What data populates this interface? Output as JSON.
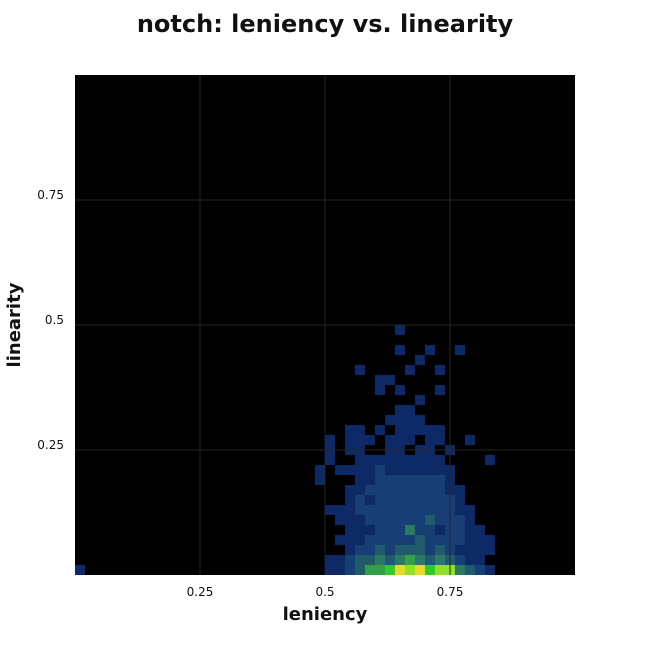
{
  "chart_data": {
    "type": "heatmap",
    "title": "notch: leniency vs. linearity",
    "xlabel": "leniency",
    "ylabel": "linearity",
    "xlim": [
      0,
      1
    ],
    "ylim": [
      0,
      1
    ],
    "bin_size": 0.02,
    "x_ticks": [
      {
        "value": 0.25,
        "label": "0.25"
      },
      {
        "value": 0.5,
        "label": "0.5"
      },
      {
        "value": 0.75,
        "label": "0.75"
      }
    ],
    "y_ticks": [
      {
        "value": 0.25,
        "label": "0.25"
      },
      {
        "value": 0.5,
        "label": "0.5"
      },
      {
        "value": 0.75,
        "label": "0.75"
      }
    ],
    "grid": true,
    "background": "#000000",
    "grid_color": "#262626",
    "colormap": [
      "#0e2a66",
      "#173f75",
      "#215a6a",
      "#2a7a5f",
      "#33a048",
      "#2ecc2e",
      "#8fe02c",
      "#e8d82a",
      "#e02222"
    ],
    "cells": [
      [
        0,
        0,
        1
      ],
      [
        25,
        0,
        1
      ],
      [
        26,
        0,
        1
      ],
      [
        27,
        0,
        2
      ],
      [
        28,
        0,
        3
      ],
      [
        29,
        0,
        5
      ],
      [
        30,
        0,
        5
      ],
      [
        31,
        0,
        6
      ],
      [
        32,
        0,
        8
      ],
      [
        33,
        0,
        7
      ],
      [
        34,
        0,
        8
      ],
      [
        35,
        0,
        6
      ],
      [
        36,
        0,
        7
      ],
      [
        37,
        0,
        7
      ],
      [
        38,
        0,
        4
      ],
      [
        39,
        0,
        3
      ],
      [
        40,
        0,
        2
      ],
      [
        41,
        0,
        1
      ],
      [
        25,
        1,
        1
      ],
      [
        26,
        1,
        1
      ],
      [
        27,
        1,
        2
      ],
      [
        28,
        1,
        3
      ],
      [
        29,
        1,
        3
      ],
      [
        30,
        1,
        4
      ],
      [
        31,
        1,
        3
      ],
      [
        32,
        1,
        4
      ],
      [
        33,
        1,
        5
      ],
      [
        34,
        1,
        4
      ],
      [
        35,
        1,
        3
      ],
      [
        36,
        1,
        4
      ],
      [
        37,
        1,
        3
      ],
      [
        38,
        1,
        2
      ],
      [
        39,
        1,
        1
      ],
      [
        40,
        1,
        1
      ],
      [
        27,
        2,
        1
      ],
      [
        28,
        2,
        2
      ],
      [
        29,
        2,
        2
      ],
      [
        30,
        2,
        3
      ],
      [
        31,
        2,
        2
      ],
      [
        32,
        2,
        3
      ],
      [
        33,
        2,
        3
      ],
      [
        34,
        2,
        3
      ],
      [
        35,
        2,
        2
      ],
      [
        36,
        2,
        3
      ],
      [
        37,
        2,
        2
      ],
      [
        38,
        2,
        1
      ],
      [
        39,
        2,
        1
      ],
      [
        40,
        2,
        1
      ],
      [
        41,
        2,
        1
      ],
      [
        26,
        3,
        1
      ],
      [
        27,
        3,
        1
      ],
      [
        28,
        3,
        1
      ],
      [
        29,
        3,
        2
      ],
      [
        30,
        3,
        2
      ],
      [
        31,
        3,
        2
      ],
      [
        32,
        3,
        2
      ],
      [
        33,
        3,
        2
      ],
      [
        34,
        3,
        3
      ],
      [
        35,
        3,
        2
      ],
      [
        36,
        3,
        2
      ],
      [
        37,
        3,
        2
      ],
      [
        38,
        3,
        2
      ],
      [
        39,
        3,
        1
      ],
      [
        40,
        3,
        1
      ],
      [
        41,
        3,
        1
      ],
      [
        27,
        4,
        1
      ],
      [
        28,
        4,
        1
      ],
      [
        29,
        4,
        1
      ],
      [
        30,
        4,
        2
      ],
      [
        31,
        4,
        2
      ],
      [
        32,
        4,
        2
      ],
      [
        33,
        4,
        4
      ],
      [
        34,
        4,
        2
      ],
      [
        35,
        4,
        2
      ],
      [
        36,
        4,
        1
      ],
      [
        37,
        4,
        2
      ],
      [
        38,
        4,
        2
      ],
      [
        39,
        4,
        1
      ],
      [
        40,
        4,
        1
      ],
      [
        26,
        5,
        1
      ],
      [
        27,
        5,
        1
      ],
      [
        28,
        5,
        1
      ],
      [
        29,
        5,
        2
      ],
      [
        30,
        5,
        2
      ],
      [
        31,
        5,
        2
      ],
      [
        32,
        5,
        2
      ],
      [
        33,
        5,
        2
      ],
      [
        34,
        5,
        2
      ],
      [
        35,
        5,
        3
      ],
      [
        36,
        5,
        2
      ],
      [
        37,
        5,
        2
      ],
      [
        38,
        5,
        2
      ],
      [
        39,
        5,
        1
      ],
      [
        25,
        6,
        1
      ],
      [
        26,
        6,
        1
      ],
      [
        27,
        6,
        1
      ],
      [
        28,
        6,
        2
      ],
      [
        29,
        6,
        2
      ],
      [
        30,
        6,
        2
      ],
      [
        31,
        6,
        2
      ],
      [
        32,
        6,
        2
      ],
      [
        33,
        6,
        2
      ],
      [
        34,
        6,
        2
      ],
      [
        35,
        6,
        2
      ],
      [
        36,
        6,
        2
      ],
      [
        37,
        6,
        2
      ],
      [
        38,
        6,
        1
      ],
      [
        39,
        6,
        1
      ],
      [
        27,
        7,
        1
      ],
      [
        28,
        7,
        2
      ],
      [
        29,
        7,
        1
      ],
      [
        30,
        7,
        2
      ],
      [
        31,
        7,
        2
      ],
      [
        32,
        7,
        2
      ],
      [
        33,
        7,
        2
      ],
      [
        34,
        7,
        2
      ],
      [
        35,
        7,
        2
      ],
      [
        36,
        7,
        2
      ],
      [
        37,
        7,
        2
      ],
      [
        38,
        7,
        1
      ],
      [
        27,
        8,
        1
      ],
      [
        28,
        8,
        1
      ],
      [
        29,
        8,
        2
      ],
      [
        30,
        8,
        2
      ],
      [
        31,
        8,
        2
      ],
      [
        32,
        8,
        2
      ],
      [
        33,
        8,
        2
      ],
      [
        34,
        8,
        2
      ],
      [
        35,
        8,
        2
      ],
      [
        36,
        8,
        2
      ],
      [
        37,
        8,
        1
      ],
      [
        38,
        8,
        1
      ],
      [
        28,
        9,
        1
      ],
      [
        29,
        9,
        1
      ],
      [
        30,
        9,
        2
      ],
      [
        31,
        9,
        2
      ],
      [
        32,
        9,
        2
      ],
      [
        33,
        9,
        2
      ],
      [
        34,
        9,
        2
      ],
      [
        35,
        9,
        2
      ],
      [
        36,
        9,
        2
      ],
      [
        37,
        9,
        1
      ],
      [
        26,
        10,
        1
      ],
      [
        27,
        10,
        1
      ],
      [
        28,
        10,
        1
      ],
      [
        29,
        10,
        1
      ],
      [
        30,
        10,
        2
      ],
      [
        31,
        10,
        1
      ],
      [
        32,
        10,
        1
      ],
      [
        33,
        10,
        1
      ],
      [
        34,
        10,
        1
      ],
      [
        35,
        10,
        1
      ],
      [
        36,
        10,
        1
      ],
      [
        37,
        10,
        1
      ],
      [
        25,
        11,
        1
      ],
      [
        28,
        11,
        1
      ],
      [
        29,
        11,
        1
      ],
      [
        30,
        11,
        1
      ],
      [
        31,
        11,
        1
      ],
      [
        32,
        11,
        1
      ],
      [
        33,
        11,
        1
      ],
      [
        34,
        11,
        1
      ],
      [
        35,
        11,
        1
      ],
      [
        36,
        11,
        1
      ],
      [
        41,
        11,
        1
      ],
      [
        25,
        12,
        1
      ],
      [
        27,
        12,
        1
      ],
      [
        28,
        12,
        1
      ],
      [
        31,
        12,
        1
      ],
      [
        32,
        12,
        1
      ],
      [
        34,
        12,
        1
      ],
      [
        35,
        12,
        1
      ],
      [
        37,
        12,
        1
      ],
      [
        25,
        13,
        1
      ],
      [
        27,
        13,
        1
      ],
      [
        28,
        13,
        1
      ],
      [
        29,
        13,
        1
      ],
      [
        31,
        13,
        1
      ],
      [
        32,
        13,
        1
      ],
      [
        33,
        13,
        1
      ],
      [
        35,
        13,
        1
      ],
      [
        36,
        13,
        1
      ],
      [
        39,
        13,
        1
      ],
      [
        27,
        14,
        1
      ],
      [
        28,
        14,
        1
      ],
      [
        30,
        14,
        1
      ],
      [
        32,
        14,
        1
      ],
      [
        33,
        14,
        1
      ],
      [
        34,
        14,
        1
      ],
      [
        35,
        14,
        1
      ],
      [
        36,
        14,
        1
      ],
      [
        31,
        15,
        1
      ],
      [
        32,
        15,
        1
      ],
      [
        33,
        15,
        1
      ],
      [
        34,
        15,
        1
      ],
      [
        32,
        16,
        1
      ],
      [
        33,
        16,
        1
      ],
      [
        34,
        17,
        1
      ],
      [
        30,
        18,
        1
      ],
      [
        32,
        18,
        1
      ],
      [
        36,
        18,
        1
      ],
      [
        30,
        19,
        1
      ],
      [
        31,
        19,
        1
      ],
      [
        28,
        20,
        1
      ],
      [
        33,
        20,
        1
      ],
      [
        36,
        20,
        1
      ],
      [
        34,
        21,
        1
      ],
      [
        32,
        22,
        1
      ],
      [
        38,
        22,
        1
      ],
      [
        35,
        22,
        1
      ],
      [
        32,
        24,
        1
      ],
      [
        24,
        10,
        1
      ],
      [
        24,
        9,
        1
      ]
    ]
  }
}
